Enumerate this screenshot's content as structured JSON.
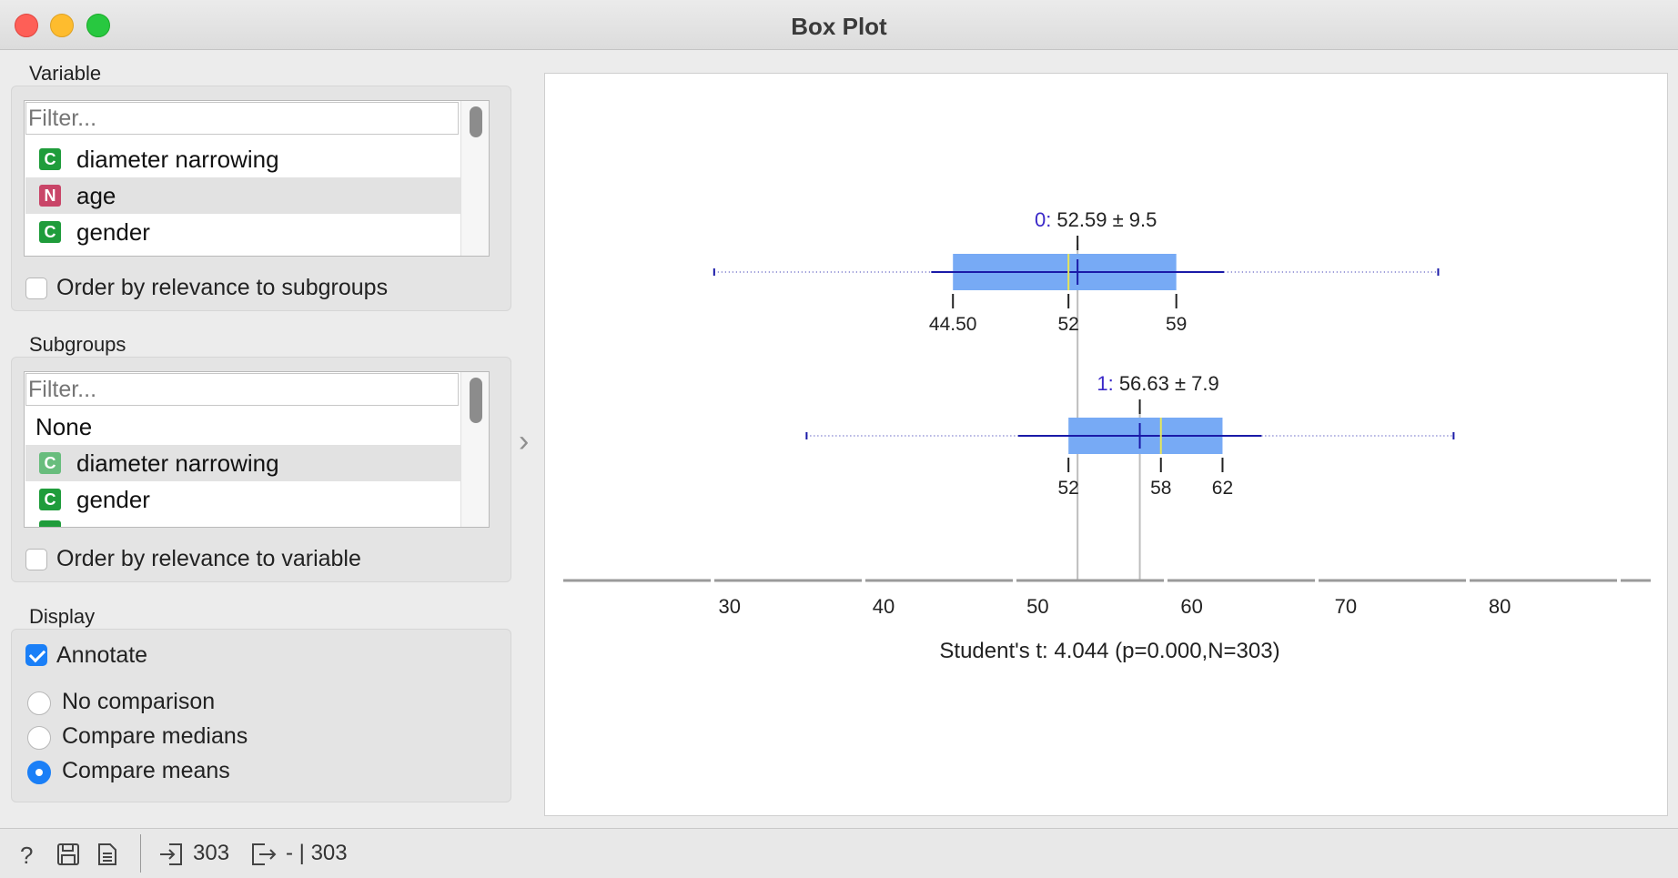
{
  "window": {
    "title": "Box Plot"
  },
  "variable": {
    "section_label": "Variable",
    "filter_placeholder": "Filter...",
    "items": [
      {
        "type": "C",
        "label": "diameter narrowing",
        "selected": false
      },
      {
        "type": "N",
        "label": "age",
        "selected": true
      },
      {
        "type": "C",
        "label": "gender",
        "selected": false
      }
    ],
    "order_label": "Order by relevance to subgroups"
  },
  "subgroups": {
    "section_label": "Subgroups",
    "filter_placeholder": "Filter...",
    "items": [
      {
        "type": "",
        "label": "None",
        "selected": false
      },
      {
        "type": "C",
        "label": "diameter narrowing",
        "selected": true
      },
      {
        "type": "C",
        "label": "gender",
        "selected": false
      }
    ],
    "order_label": "Order by relevance to variable"
  },
  "display": {
    "section_label": "Display",
    "annotate_label": "Annotate",
    "annotate_checked": true,
    "options": [
      "No comparison",
      "Compare medians",
      "Compare means"
    ],
    "selected_option": "Compare means"
  },
  "chart_data": {
    "type": "box",
    "xlim": [
      19.5,
      89.5
    ],
    "x_ticks": [
      30,
      40,
      50,
      60,
      70,
      80
    ],
    "groups": [
      {
        "name": "0",
        "annotation_label": "0:",
        "annotation_value": "52.59 ± 9.5",
        "mean": 52.59,
        "sd": 9.5,
        "min": 29,
        "max": 76,
        "q1": 44.5,
        "median": 52,
        "q3": 59,
        "q_labels": [
          "44.50",
          "52",
          "59"
        ]
      },
      {
        "name": "1",
        "annotation_label": "1:",
        "annotation_value": "56.63 ± 7.9",
        "mean": 56.63,
        "sd": 7.9,
        "min": 35,
        "max": 77,
        "q1": 52,
        "median": 58,
        "q3": 62,
        "q_labels": [
          "52",
          "58",
          "62"
        ]
      }
    ],
    "stat_text": "Student's t: 4.044 (p=0.000,N=303)",
    "colors": {
      "box": "#77aaf5",
      "whisker": "#1a1aa8",
      "median": "#e6e65a",
      "mean_line": "#bdbdbd",
      "group_label": "#3a28c8"
    }
  },
  "status": {
    "input_count": "303",
    "output_text": "- | 303"
  }
}
